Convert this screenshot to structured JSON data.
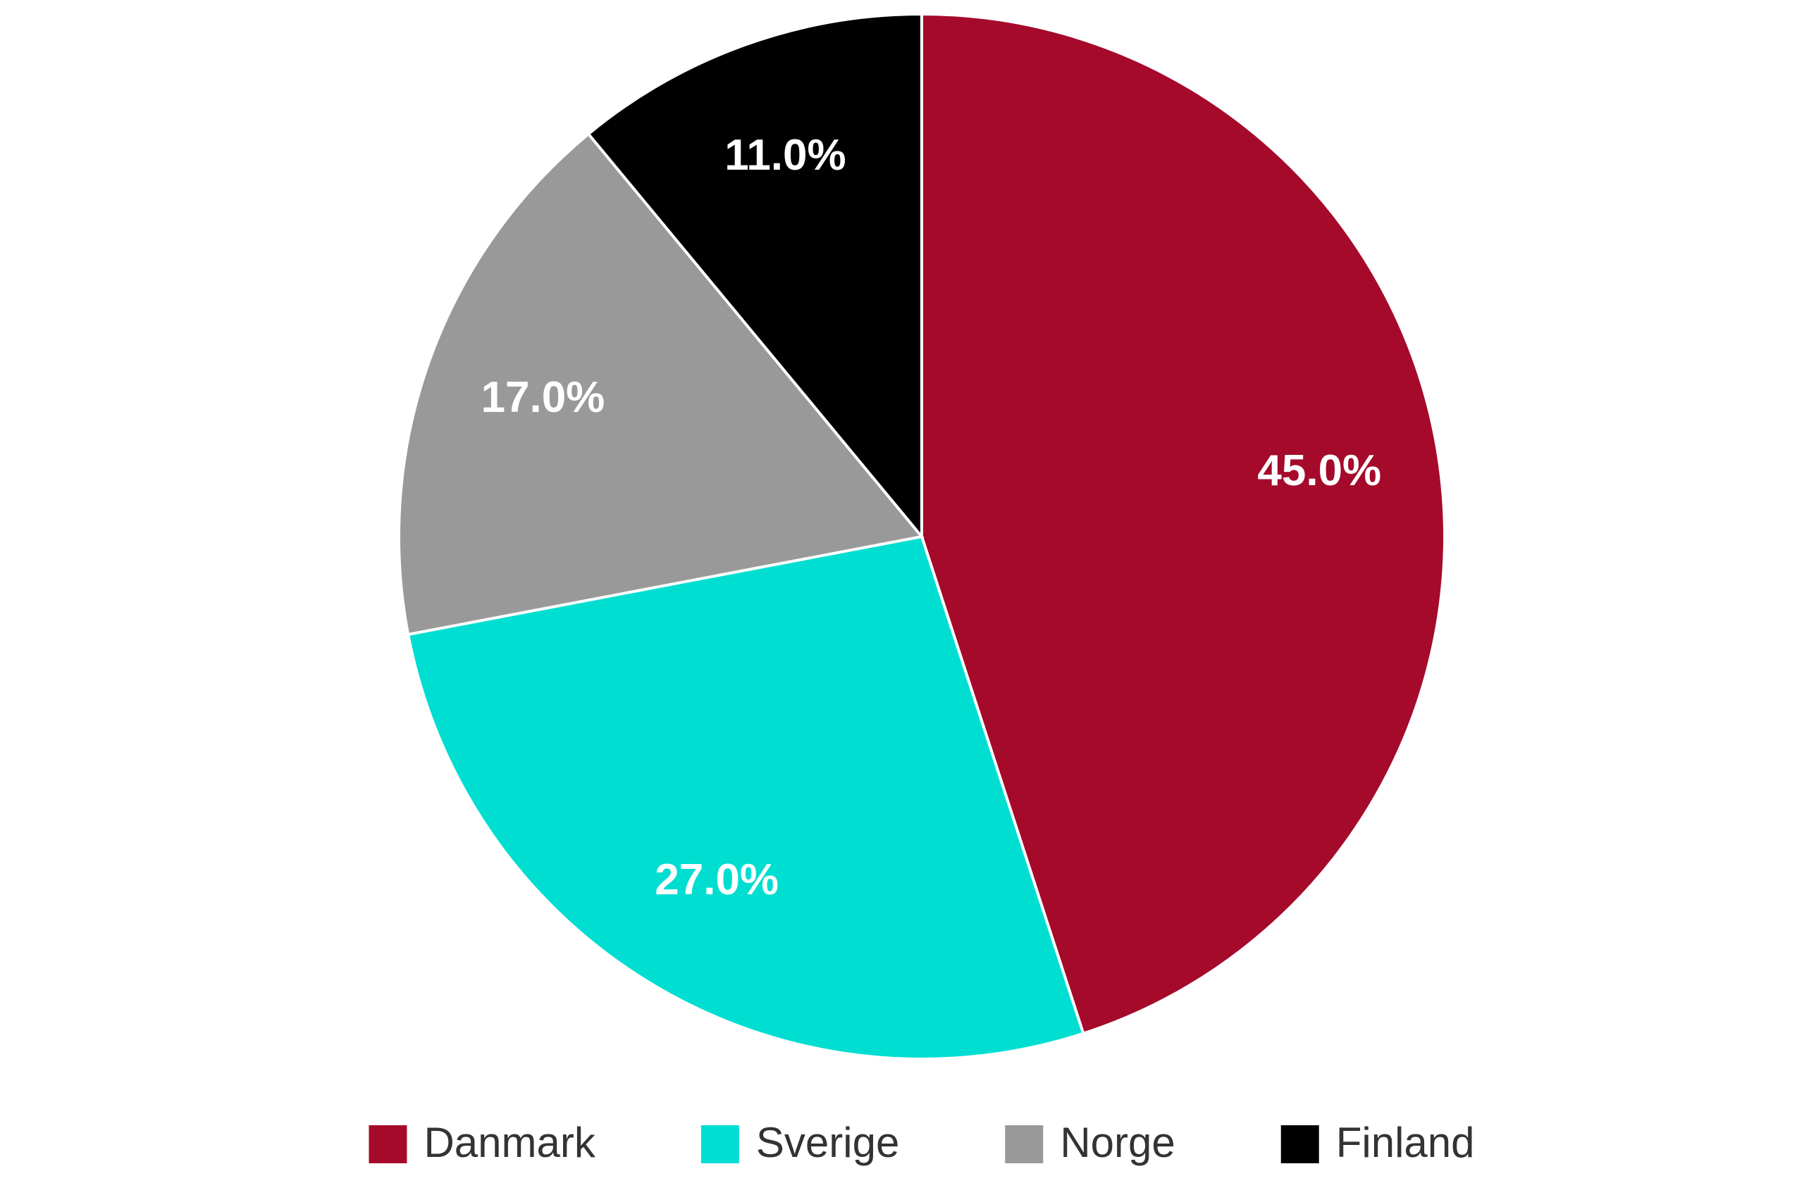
{
  "chart_data": {
    "type": "pie",
    "categories": [
      "Danmark",
      "Sverige",
      "Norge",
      "Finland"
    ],
    "values": [
      45,
      27,
      17,
      11
    ],
    "value_labels": [
      "45.0%",
      "27.0%",
      "17.0%",
      "11.0%"
    ],
    "colors": [
      "#a50a2b",
      "#00ded2",
      "#999999",
      "#000000"
    ],
    "legend": "bottom"
  }
}
